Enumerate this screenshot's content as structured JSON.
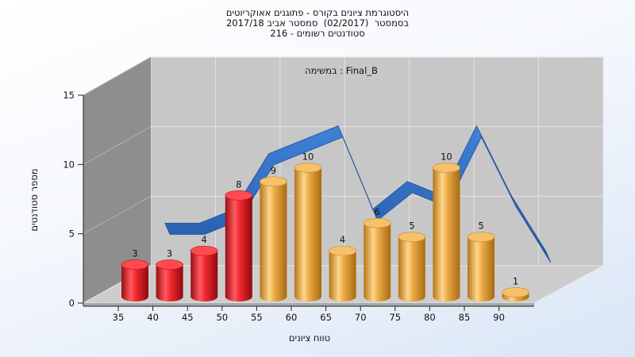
{
  "chart_data": {
    "type": "bar",
    "title_lines": [
      "היסטוגרמת ציונים בקורס - פתוגנים אאוקריוטים",
      "בסמסטר  (02/2017)  סמסטר אביב 2017/18",
      "סטודנטים רשומים - 216"
    ],
    "subtitle": "במשימה : Final_B",
    "xlabel": "טווח ציונים",
    "ylabel": "מספר סטודנטים",
    "categories": [
      "35",
      "40",
      "45",
      "50",
      "55",
      "60",
      "65",
      "70",
      "75",
      "80",
      "85",
      "90"
    ],
    "values": [
      3,
      3,
      4,
      8,
      9,
      10,
      4,
      6,
      5,
      10,
      5,
      1
    ],
    "bar_colors": [
      "#e8222a",
      "#e8222a",
      "#e8222a",
      "#e8222a",
      "#e8a845",
      "#e8a845",
      "#e8a845",
      "#e8a845",
      "#e8a845",
      "#e8a845",
      "#e8a845",
      "#e8a845"
    ],
    "ribbon_color": "#2f6fc4",
    "yticks": [
      "0",
      "5",
      "10",
      "15"
    ],
    "ylim": [
      0,
      15
    ],
    "grid": true
  }
}
